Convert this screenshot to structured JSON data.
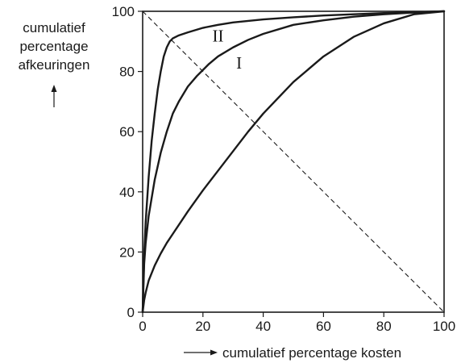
{
  "chart_data": {
    "type": "line",
    "xlabel": "cumulatief percentage kosten",
    "ylabel_lines": [
      "cumulatief",
      "percentage",
      "afkeuringen"
    ],
    "xlim": [
      0,
      100
    ],
    "ylim": [
      0,
      100
    ],
    "x_ticks": [
      "0",
      "20",
      "40",
      "60",
      "80",
      "100"
    ],
    "y_ticks": [
      "0",
      "20",
      "40",
      "60",
      "80",
      "100"
    ],
    "grid": false,
    "series": [
      {
        "name": "II",
        "x": [
          0,
          0.5,
          1,
          2,
          3,
          4,
          5,
          6,
          7,
          8,
          9,
          10,
          12,
          15,
          20,
          25,
          30,
          40,
          50,
          60,
          70,
          80,
          90,
          100
        ],
        "y": [
          0,
          19,
          30,
          45,
          57,
          66,
          74,
          80,
          85,
          88,
          90,
          91,
          92,
          93,
          94.5,
          95.5,
          96.3,
          97.3,
          98,
          98.6,
          99,
          99.4,
          99.7,
          100
        ]
      },
      {
        "name": "I",
        "x": [
          0,
          0.5,
          1,
          2,
          4,
          6,
          8,
          10,
          12,
          15,
          18,
          20,
          22,
          25,
          30,
          35,
          40,
          50,
          60,
          70,
          80,
          90,
          100
        ],
        "y": [
          0,
          16,
          23,
          32,
          44,
          53,
          60,
          66,
          70,
          75,
          78.5,
          80.5,
          82.5,
          85,
          88,
          90.5,
          92.5,
          95.5,
          97,
          98.2,
          99,
          99.6,
          100
        ]
      },
      {
        "name": "",
        "x": [
          0,
          0.5,
          1,
          2,
          4,
          6,
          8,
          10,
          15,
          20,
          25,
          30,
          35,
          40,
          50,
          60,
          70,
          80,
          90,
          100
        ],
        "y": [
          0,
          4,
          6.5,
          10.5,
          15.5,
          19.5,
          23,
          26,
          33.5,
          40.5,
          47,
          53.5,
          60,
          66,
          76.5,
          85,
          91.5,
          96,
          99,
          100
        ]
      }
    ],
    "reference_line": {
      "style": "dashed",
      "from": [
        0,
        100
      ],
      "to": [
        100,
        0
      ]
    },
    "annotations": [
      {
        "text": "II",
        "x": 25,
        "y": 90
      },
      {
        "text": "I",
        "x": 32,
        "y": 81
      }
    ]
  }
}
